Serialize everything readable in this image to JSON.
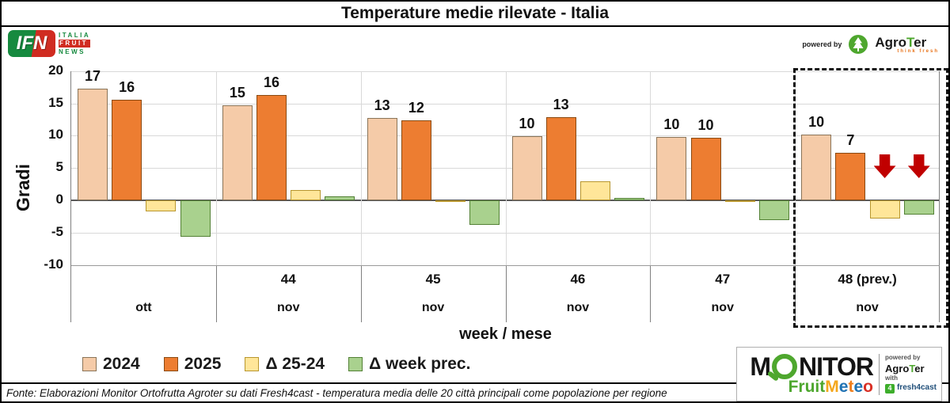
{
  "title": "Temperature medie rilevate - Italia",
  "header": {
    "ifn": {
      "abbr": "IFN",
      "line1": "ITALIA",
      "line2": "FRUIT",
      "line3": "NEWS"
    },
    "powered_by": "powered by",
    "agroter_prefix": "Agro",
    "agroter_t": "T",
    "agroter_suffix": "er",
    "agroter_tagline": "think fresh"
  },
  "chart_data": {
    "type": "bar",
    "title": "Temperature medie rilevate - Italia",
    "ylabel": "Gradi",
    "xlabel": "week / mese",
    "ylim": [
      -10,
      20
    ],
    "yticks": [
      20,
      15,
      10,
      5,
      0,
      -5,
      -10
    ],
    "grid": true,
    "legend_position": "bottom-left",
    "categories": [
      {
        "week": "",
        "month": "ott"
      },
      {
        "week": "44",
        "month": "nov"
      },
      {
        "week": "45",
        "month": "nov"
      },
      {
        "week": "46",
        "month": "nov"
      },
      {
        "week": "47",
        "month": "nov"
      },
      {
        "week": "48 (prev.)",
        "month": "nov"
      }
    ],
    "series": [
      {
        "name": "2024",
        "color": "#F5CBA8",
        "border": "#8a7458",
        "values": [
          17.3,
          14.7,
          12.7,
          9.9,
          9.8,
          10.2
        ],
        "labels": [
          "17",
          "15",
          "13",
          "10",
          "10",
          "10"
        ]
      },
      {
        "name": "2025",
        "color": "#ED7D31",
        "border": "#8a4a12",
        "values": [
          15.6,
          16.3,
          12.4,
          12.8,
          9.7,
          7.3
        ],
        "labels": [
          "16",
          "16",
          "12",
          "13",
          "10",
          "7"
        ]
      },
      {
        "name": "Δ 25-24",
        "color": "#FFE699",
        "border": "#b8962e",
        "values": [
          -1.7,
          1.6,
          -0.3,
          2.9,
          -0.3,
          -2.8
        ]
      },
      {
        "name": "Δ week prec.",
        "color": "#A9D18E",
        "border": "#538135",
        "values": [
          -5.6,
          0.6,
          -3.8,
          0.4,
          -3.1,
          -2.2
        ]
      }
    ],
    "highlight_group_index": 5,
    "arrows": {
      "group_index": 5,
      "series_indexes": [
        2,
        3
      ],
      "color": "#C00000",
      "meaning": "forecast decline"
    }
  },
  "footer": {
    "source": "Fonte: Elaborazioni Monitor Ortofrutta Agroter su dati Fresh4cast - temperatura media delle 20 città principali come popolazione per regione"
  },
  "brand": {
    "monitor_prefix": "M",
    "monitor_suffix": "NITOR",
    "fruit": "Fruit",
    "meteo_letters": [
      {
        "ch": "M",
        "color": "#F4A71D"
      },
      {
        "ch": "e",
        "color": "#2173B4"
      },
      {
        "ch": "t",
        "color": "#F07D1A"
      },
      {
        "ch": "e",
        "color": "#2173B4"
      },
      {
        "ch": "o",
        "color": "#D93025"
      }
    ],
    "powered_by": "powered by",
    "agroter_prefix": "Agro",
    "agroter_t": "T",
    "agroter_suffix": "er",
    "with_label": "with",
    "fresh4cast_square": "4",
    "fresh4cast": "fresh4cast"
  }
}
